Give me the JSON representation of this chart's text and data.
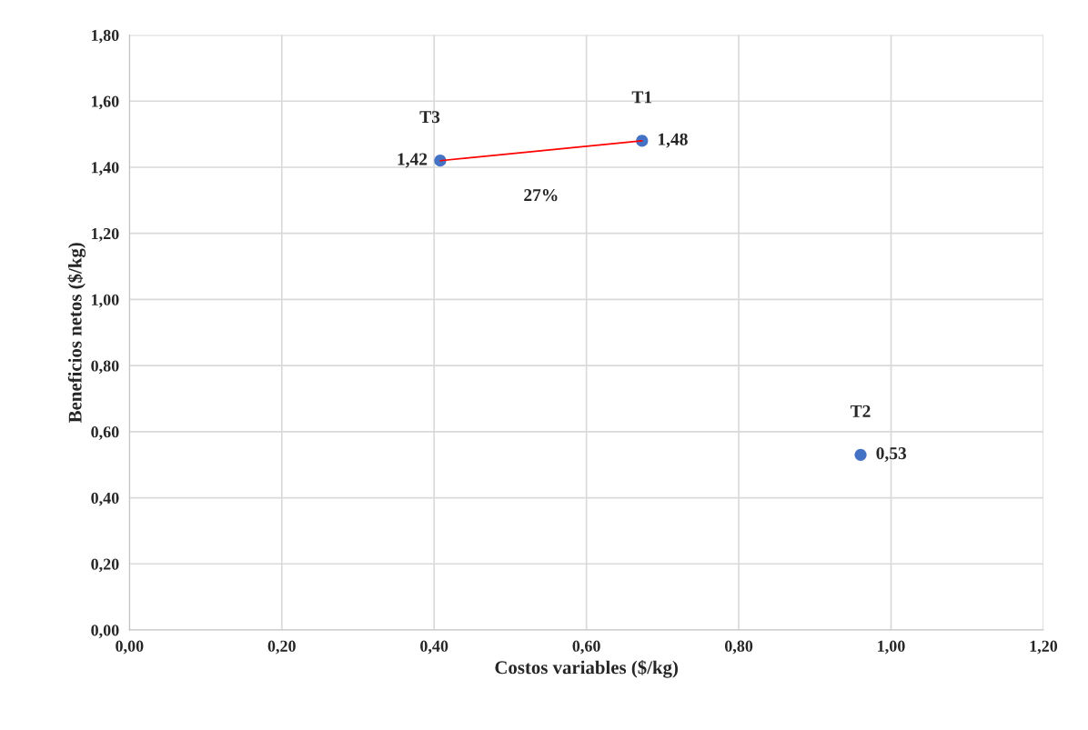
{
  "chart_data": {
    "type": "scatter",
    "xlabel": "Costos variables ($/kg)",
    "ylabel": "Beneficios netos ($/kg)",
    "series": [
      {
        "color": "#4472c4",
        "x": [
          0.673,
          0.96,
          0.408
        ],
        "values": [
          1.48,
          0.53,
          1.42
        ],
        "value_labels": [
          "1,48",
          "0,53",
          "1,42"
        ],
        "marker": "circle"
      },
      {
        "type": "line",
        "color": "#ff0000",
        "x": [
          0.408,
          0.673
        ],
        "values": [
          1.42,
          1.48
        ],
        "marker": "none",
        "line_style": "solid"
      }
    ],
    "annotations": [
      {
        "text": "T1",
        "x": 0.673,
        "y": 1.48
      },
      {
        "text": "T2",
        "x": 0.96,
        "y": 0.53
      },
      {
        "text": "T3",
        "x": 0.408,
        "y": 1.42
      },
      "27%"
    ],
    "xlim": [
      0,
      1.2
    ],
    "xticks": [
      {
        "value": 0,
        "label": "0,00"
      },
      {
        "value": 0.2,
        "label": "0,20"
      },
      {
        "value": 0.4,
        "label": "0,40"
      },
      {
        "value": 0.6,
        "label": "0,60"
      },
      {
        "value": 0.8,
        "label": "0,80"
      },
      {
        "value": 1.0,
        "label": "1,00"
      },
      {
        "value": 1.2,
        "label": "1,20"
      }
    ],
    "ylim": [
      0,
      1.8
    ],
    "yticks": [
      {
        "value": 0,
        "label": "0,00"
      },
      {
        "value": 0.2,
        "label": "0,20"
      },
      {
        "value": 0.4,
        "label": "0,40"
      },
      {
        "value": 0.6,
        "label": "0,60"
      },
      {
        "value": 0.8,
        "label": "0,80"
      },
      {
        "value": 1.0,
        "label": "1,00"
      },
      {
        "value": 1.2,
        "label": "1,20"
      },
      {
        "value": 1.4,
        "label": "1,40"
      },
      {
        "value": 1.6,
        "label": "1,60"
      },
      {
        "value": 1.8,
        "label": "1,80"
      }
    ],
    "grid": true
  }
}
